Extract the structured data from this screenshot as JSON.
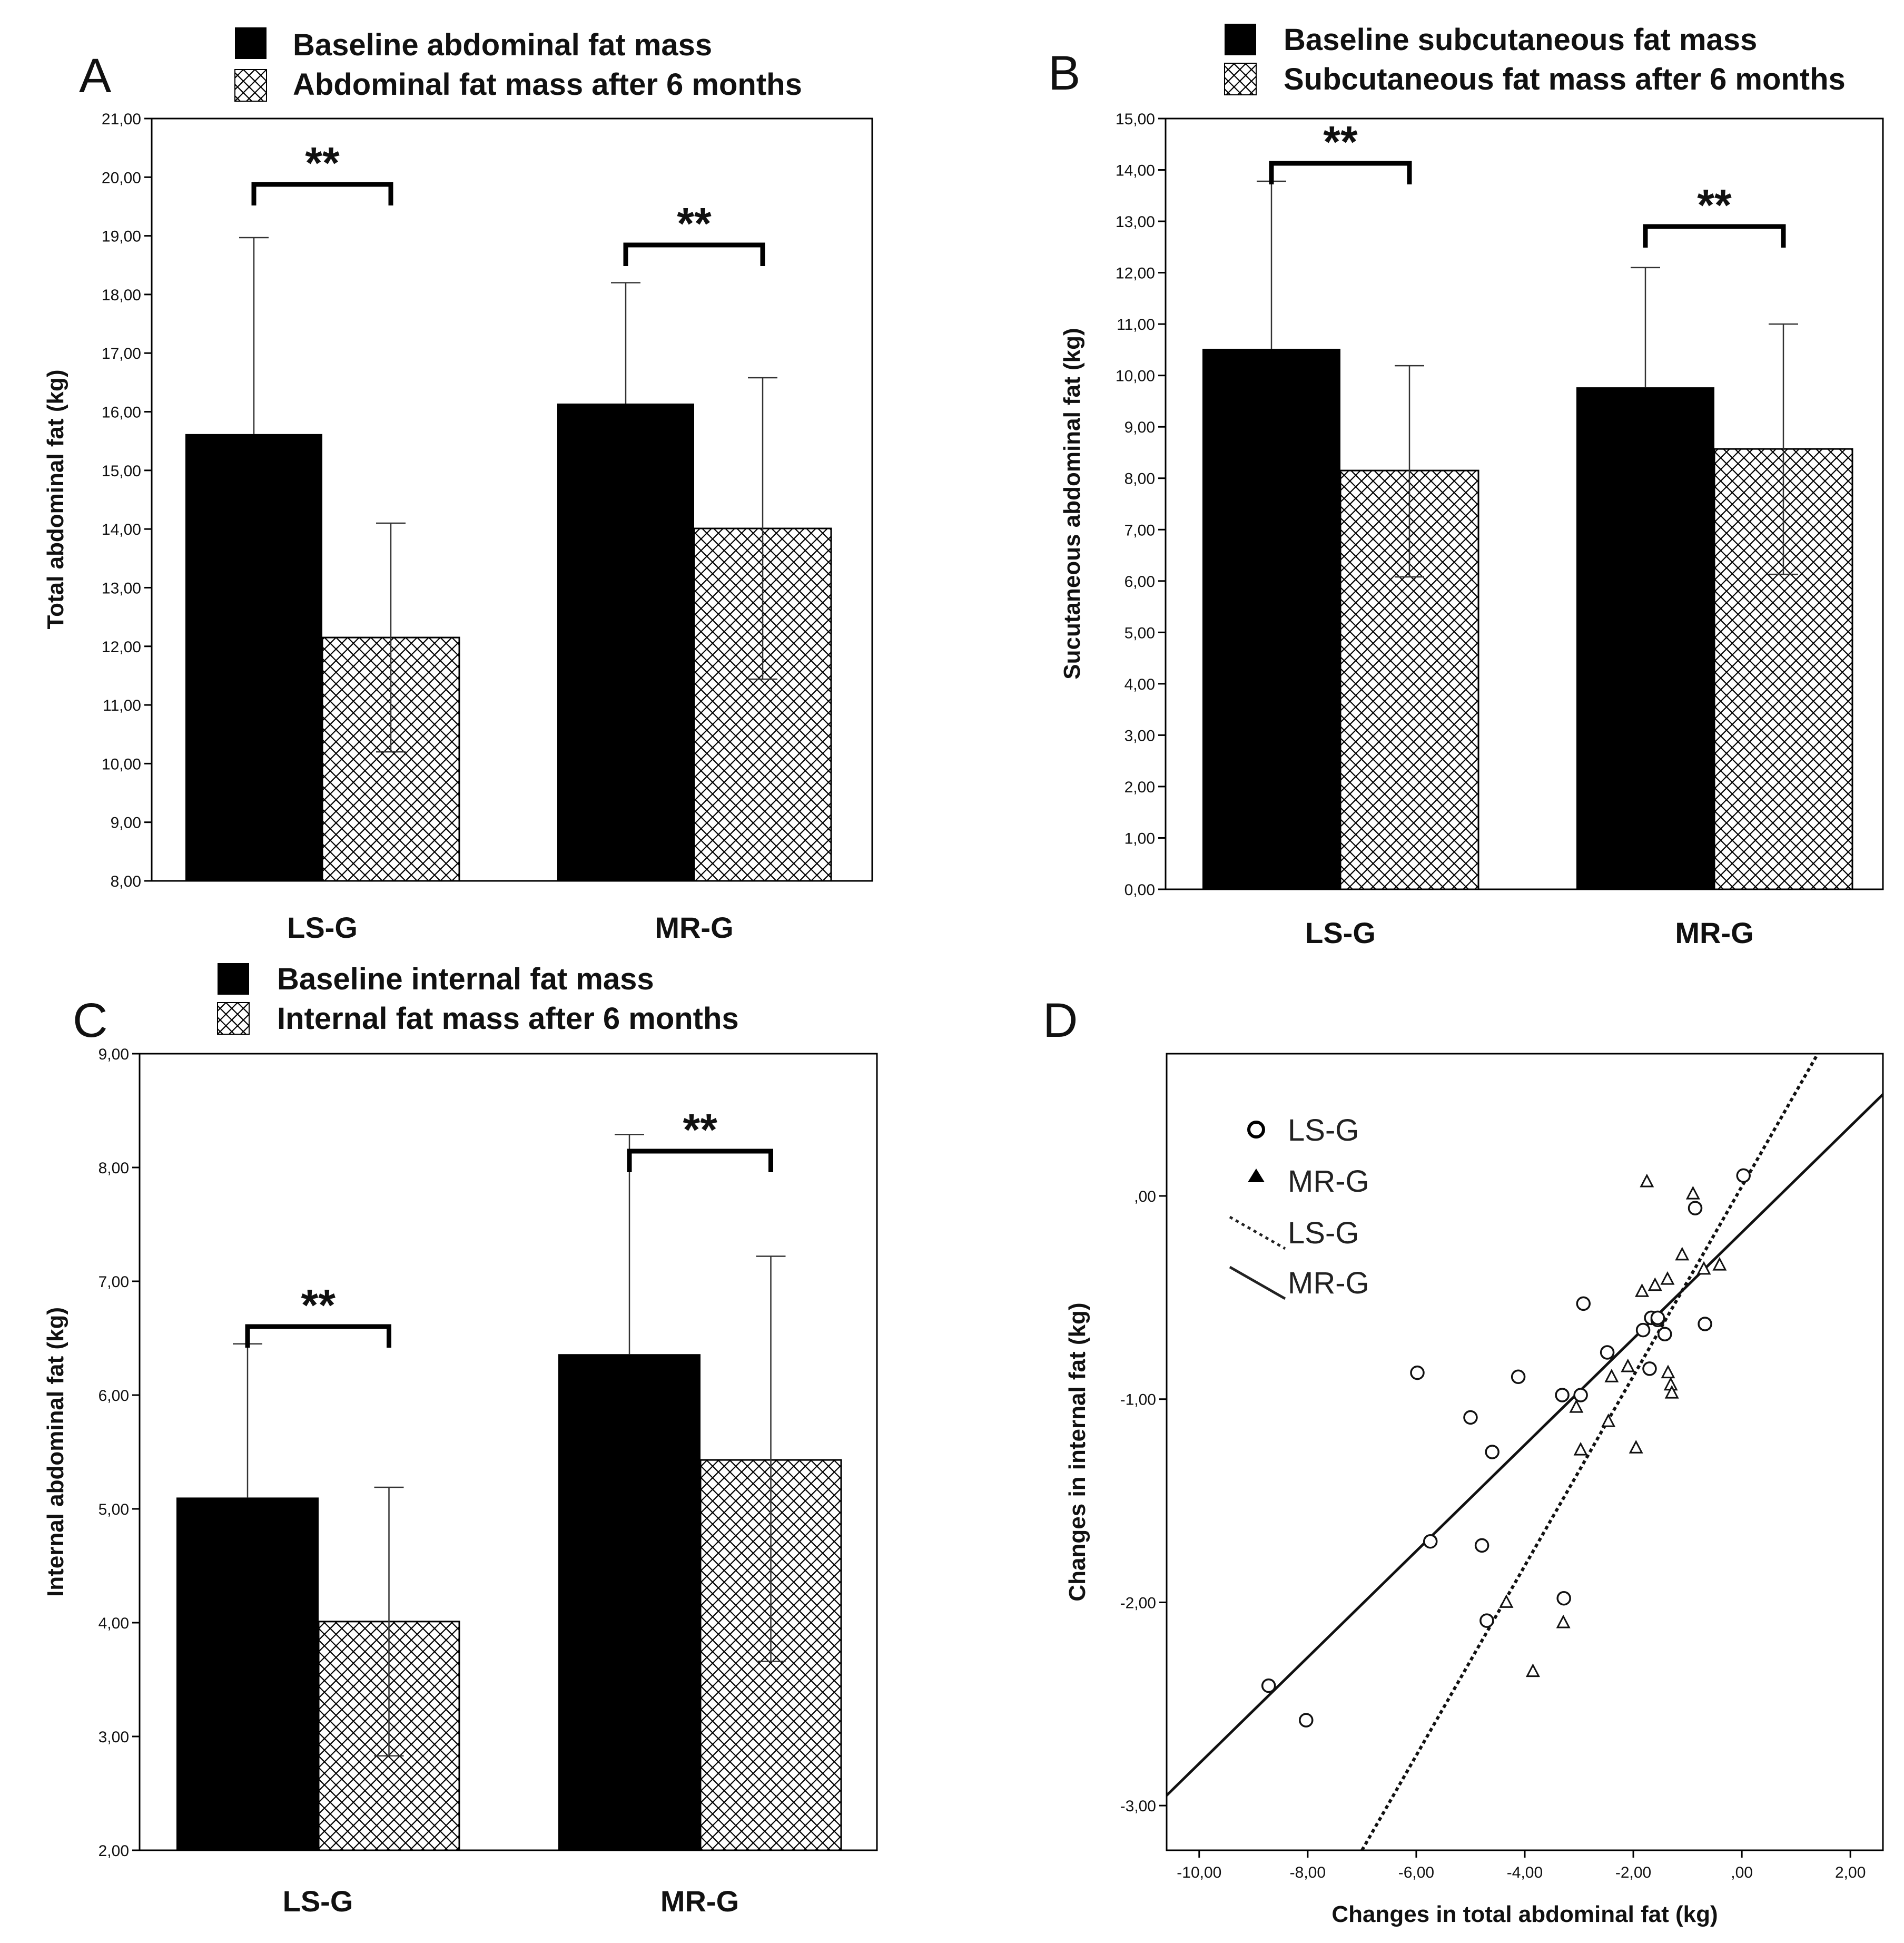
{
  "panels": {
    "A": {
      "letter": "A",
      "legend": {
        "baseline": "Baseline abdominal fat mass",
        "after": "Abdominal fat mass after 6 months"
      }
    },
    "B": {
      "letter": "B",
      "legend": {
        "baseline": "Baseline subcutaneous fat mass",
        "after": "Subcutaneous fat mass after 6 months"
      }
    },
    "C": {
      "letter": "C",
      "legend": {
        "baseline": "Baseline internal fat mass",
        "after": "Internal fat mass after 6 months"
      }
    },
    "D": {
      "letter": "D",
      "legend": {
        "lsg_points": "LS-G",
        "mrg_points": "MR-G",
        "lsg_line": "LS-G",
        "mrg_line": "MR-G"
      }
    }
  },
  "colors": {
    "baseline": "#000000",
    "after_hatch": "#000000",
    "background": "#ffffff"
  },
  "chart_data": [
    {
      "type": "bar",
      "panel": "A",
      "categories": [
        "LS-G",
        "MR-G"
      ],
      "series": [
        {
          "name": "Baseline abdominal fat mass",
          "values": [
            15.62,
            16.14
          ],
          "error_upper": [
            18.97,
            18.2
          ]
        },
        {
          "name": "Abdominal fat mass after 6 months",
          "values": [
            12.15,
            14.01
          ],
          "error_upper": [
            14.1,
            16.58
          ],
          "error_lower": [
            10.2,
            11.44
          ]
        }
      ],
      "ylabel": "Total abdominal fat (kg)",
      "ylim": [
        8.0,
        21.0
      ],
      "yticks": [
        "8,00",
        "9,00",
        "10,00",
        "11,00",
        "12,00",
        "13,00",
        "14,00",
        "15,00",
        "16,00",
        "17,00",
        "18,00",
        "19,00",
        "20,00",
        "21,00"
      ],
      "significance": [
        "**",
        "**"
      ]
    },
    {
      "type": "bar",
      "panel": "B",
      "categories": [
        "LS-G",
        "MR-G"
      ],
      "series": [
        {
          "name": "Baseline subcutaneous fat mass",
          "values": [
            10.52,
            9.77
          ],
          "error_upper": [
            13.78,
            12.1
          ]
        },
        {
          "name": "Subcutaneous fat mass after 6 months",
          "values": [
            8.15,
            8.57
          ],
          "error_upper": [
            10.19,
            11.0
          ],
          "error_lower": [
            6.08,
            6.13
          ]
        }
      ],
      "ylabel": "Sucutaneous abdominal fat (kg)",
      "ylim": [
        0.0,
        15.0
      ],
      "yticks": [
        "0,00",
        "1,00",
        "2,00",
        "3,00",
        "4,00",
        "5,00",
        "6,00",
        "7,00",
        "8,00",
        "9,00",
        "10,00",
        "11,00",
        "12,00",
        "13,00",
        "14,00",
        "15,00"
      ],
      "significance": [
        "**",
        "**"
      ]
    },
    {
      "type": "bar",
      "panel": "C",
      "categories": [
        "LS-G",
        "MR-G"
      ],
      "series": [
        {
          "name": "Baseline internal fat mass",
          "values": [
            5.1,
            6.36
          ],
          "error_upper": [
            6.45,
            8.29
          ]
        },
        {
          "name": "Internal fat mass after 6 months",
          "values": [
            4.01,
            5.43
          ],
          "error_upper": [
            5.19,
            7.22
          ],
          "error_lower": [
            2.83,
            3.66
          ]
        }
      ],
      "ylabel": "Internal abdominal fat (kg)",
      "ylim": [
        2.0,
        9.0
      ],
      "yticks": [
        "2,00",
        "3,00",
        "4,00",
        "5,00",
        "6,00",
        "7,00",
        "8,00",
        "9,00"
      ],
      "significance": [
        "**",
        "**"
      ]
    },
    {
      "type": "scatter",
      "panel": "D",
      "xlabel": "Changes in total abdominal fat (kg)",
      "ylabel": "Changes in internal fat (kg)",
      "xlim": [
        -10.6,
        2.6
      ],
      "ylim": [
        -3.22,
        0.7
      ],
      "xticks": [
        "-10,00",
        "-8,00",
        "-6,00",
        "-4,00",
        "-2,00",
        ",00",
        "2,00"
      ],
      "yticks": [
        "-3,00",
        "-2,00",
        "-1,00",
        ",00"
      ],
      "series": [
        {
          "name": "LS-G",
          "marker": "circle",
          "x": [
            -8.72,
            -8.03,
            -5.74,
            -5.98,
            -5.0,
            -4.79,
            -4.6,
            -4.7,
            -4.12,
            -3.31,
            -3.28,
            -2.97,
            -2.92,
            -2.48,
            -1.82,
            -1.7,
            -1.67,
            -1.55,
            -1.55,
            -1.42,
            -0.86,
            -0.68,
            0.03
          ],
          "y": [
            -2.41,
            -2.58,
            -1.7,
            -0.87,
            -1.09,
            -1.72,
            -1.26,
            -2.09,
            -0.89,
            -0.98,
            -1.98,
            -0.98,
            -0.53,
            -0.77,
            -0.66,
            -0.85,
            -0.6,
            -0.61,
            -0.6,
            -0.68,
            -0.06,
            -0.63,
            0.1
          ]
        },
        {
          "name": "MR-G",
          "marker": "triangle",
          "x": [
            -4.34,
            -3.85,
            -3.29,
            -3.05,
            -2.97,
            -2.46,
            -2.4,
            -2.1,
            -1.95,
            -1.84,
            -1.75,
            -1.6,
            -1.37,
            -1.36,
            -1.31,
            -1.29,
            -1.1,
            -0.9,
            -0.7,
            -0.41
          ],
          "y": [
            -2.0,
            -2.34,
            -2.1,
            -1.04,
            -1.25,
            -1.11,
            -0.89,
            -0.84,
            -1.24,
            -0.47,
            0.07,
            -0.44,
            -0.41,
            -0.87,
            -0.93,
            -0.97,
            -0.29,
            0.01,
            -0.36,
            -0.34
          ]
        }
      ],
      "fit_lines": [
        {
          "name": "LS-G",
          "style": "dotted",
          "x": [
            -7.0,
            1.4
          ],
          "y": [
            -3.22,
            0.7
          ]
        },
        {
          "name": "MR-G",
          "style": "solid",
          "x": [
            -10.6,
            2.6
          ],
          "y": [
            -2.95,
            0.5
          ]
        }
      ]
    }
  ]
}
